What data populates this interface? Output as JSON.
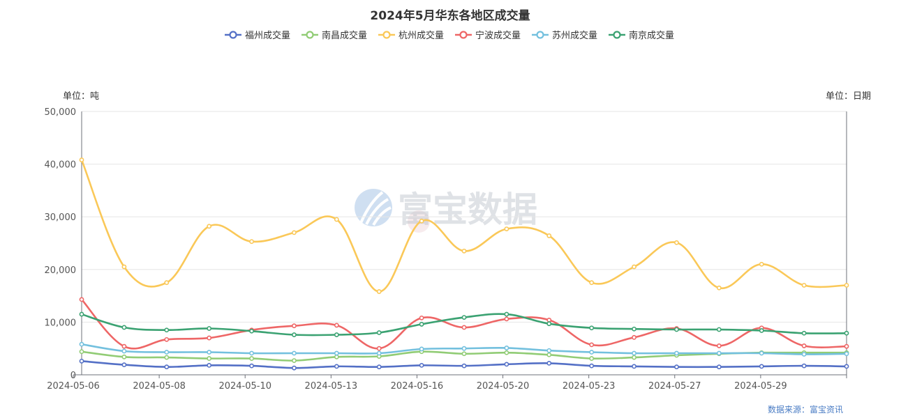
{
  "chart_data": {
    "type": "line",
    "title": "2024年5月华东各地区成交量",
    "left_unit": "单位：吨",
    "right_unit": "单位：日期",
    "source": "数据来源：富宝资讯",
    "watermark": "富宝数据",
    "ylim": [
      0,
      50000
    ],
    "y_ticks": [
      "0",
      "10,000",
      "20,000",
      "30,000",
      "40,000",
      "50,000"
    ],
    "x_tick_labels": [
      "2024-05-06",
      "2024-05-08",
      "2024-05-10",
      "2024-05-13",
      "2024-05-16",
      "2024-05-20",
      "2024-05-23",
      "2024-05-27",
      "2024-05-29"
    ],
    "legend_position": "top-center",
    "grid": true,
    "smooth": true,
    "series": [
      {
        "name": "福州成交量",
        "color": "#5470c6",
        "values": [
          2600,
          1900,
          1500,
          1800,
          1700,
          1300,
          1600,
          1500,
          1800,
          1700,
          2000,
          2200,
          1700,
          1600,
          1500,
          1500,
          1600,
          1700,
          1600
        ]
      },
      {
        "name": "南昌成交量",
        "color": "#91cc75",
        "values": [
          4400,
          3400,
          3300,
          3100,
          3100,
          2700,
          3400,
          3500,
          4400,
          4000,
          4200,
          3800,
          3100,
          3300,
          3700,
          4000,
          4200,
          4200,
          4200
        ]
      },
      {
        "name": "杭州成交量",
        "color": "#fac858",
        "values": [
          40800,
          20500,
          17500,
          28200,
          25300,
          27000,
          29500,
          15800,
          29200,
          23500,
          27700,
          26400,
          17500,
          20500,
          25100,
          16500,
          21000,
          17000,
          17000
        ]
      },
      {
        "name": "宁波成交量",
        "color": "#ee6666",
        "values": [
          14300,
          5400,
          6700,
          7000,
          8500,
          9300,
          9400,
          5000,
          10800,
          9000,
          10600,
          10400,
          5700,
          7100,
          8800,
          5500,
          8900,
          5500,
          5400
        ]
      },
      {
        "name": "苏州成交量",
        "color": "#73c0de",
        "values": [
          5800,
          4500,
          4300,
          4300,
          4100,
          4100,
          4100,
          4100,
          4900,
          5000,
          5100,
          4600,
          4300,
          4100,
          4100,
          4100,
          4100,
          3900,
          4000
        ]
      },
      {
        "name": "南京成交量",
        "color": "#3ba272",
        "values": [
          11500,
          9000,
          8500,
          8800,
          8300,
          7600,
          7600,
          8000,
          9600,
          10900,
          11500,
          9700,
          8900,
          8700,
          8600,
          8600,
          8400,
          7900,
          7900
        ]
      }
    ]
  }
}
